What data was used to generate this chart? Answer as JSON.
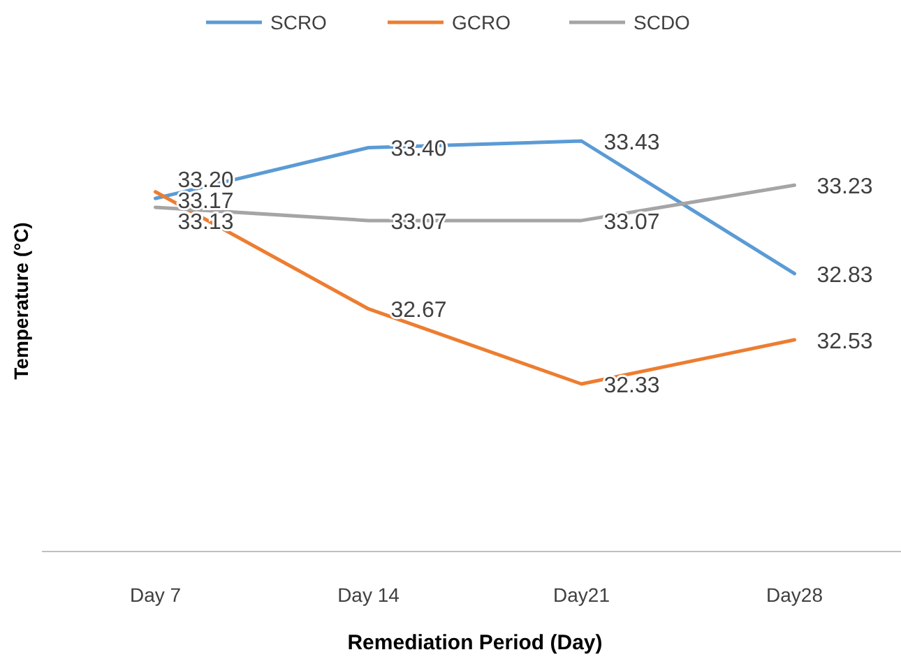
{
  "chart_data": {
    "type": "line",
    "xlabel": "Remediation Period (Day)",
    "ylabel": "Temperature (°C)",
    "categories": [
      "Day 7",
      "Day 14",
      "Day21",
      "Day28"
    ],
    "series": [
      {
        "name": "SCRO",
        "color": "#5b9bd5",
        "values": [
          33.17,
          33.4,
          33.43,
          32.83
        ],
        "value_labels": [
          "33.17",
          "33.40",
          "33.43",
          "32.83"
        ]
      },
      {
        "name": "GCRO",
        "color": "#ed7d31",
        "values": [
          33.2,
          32.67,
          32.33,
          32.53
        ],
        "value_labels": [
          "33.20",
          "32.67",
          "32.33",
          "32.53"
        ]
      },
      {
        "name": "SCDO",
        "color": "#a5a5a5",
        "values": [
          33.13,
          33.07,
          33.07,
          33.23
        ],
        "value_labels": [
          "33.13",
          "33.07",
          "33.07",
          "33.23"
        ]
      }
    ],
    "legend": "top",
    "grid": false,
    "tick_labels": "x",
    "marker": "none",
    "line_style": "solid"
  }
}
